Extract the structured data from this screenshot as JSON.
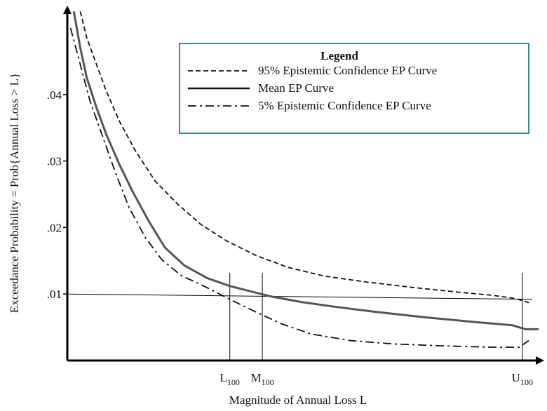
{
  "chart_data": {
    "type": "line",
    "xlabel": "Magnitude of Annual Loss L",
    "ylabel": "Exceedance Probability = Prob{Annual Loss > L}",
    "x_ticks": [
      {
        "base": "L",
        "sub": "100",
        "value": 0.5
      },
      {
        "base": "M",
        "sub": "100",
        "value": 0.6
      },
      {
        "base": "U",
        "sub": "100",
        "value": 1.4
      }
    ],
    "y_ticks": [
      {
        "label": ".01",
        "value": 0.01
      },
      {
        "label": ".02",
        "value": 0.02
      },
      {
        "label": ".03",
        "value": 0.03
      },
      {
        "label": ".04",
        "value": 0.04
      }
    ],
    "xlim": [
      0,
      1.45
    ],
    "ylim": [
      0,
      0.05
    ],
    "reference_line_y": 0.01,
    "legend": {
      "title": "Legend",
      "position": "top-right",
      "entries": [
        {
          "label": "95% Epistemic Confidence EP Curve",
          "style": "dashed"
        },
        {
          "label": "Mean EP Curve",
          "style": "solid"
        },
        {
          "label": "5% Epistemic Confidence EP Curve",
          "style": "dash-dot"
        }
      ]
    },
    "series": [
      {
        "name": "95% Epistemic Confidence EP Curve",
        "style": "dashed",
        "color": "#111111",
        "points": [
          [
            0.04,
            0.0525
          ],
          [
            0.06,
            0.0485
          ],
          [
            0.09,
            0.0445
          ],
          [
            0.12,
            0.0405
          ],
          [
            0.16,
            0.036
          ],
          [
            0.21,
            0.0315
          ],
          [
            0.27,
            0.027
          ],
          [
            0.34,
            0.0235
          ],
          [
            0.41,
            0.0205
          ],
          [
            0.49,
            0.018
          ],
          [
            0.58,
            0.0158
          ],
          [
            0.68,
            0.014
          ],
          [
            0.79,
            0.0127
          ],
          [
            0.92,
            0.0118
          ],
          [
            1.06,
            0.011
          ],
          [
            1.2,
            0.0103
          ],
          [
            1.31,
            0.0098
          ],
          [
            1.38,
            0.0093
          ],
          [
            1.42,
            0.0087
          ]
        ]
      },
      {
        "name": "Mean EP Curve",
        "style": "solid",
        "color": "#555555",
        "points": [
          [
            0.02,
            0.0525
          ],
          [
            0.04,
            0.047
          ],
          [
            0.06,
            0.0425
          ],
          [
            0.09,
            0.038
          ],
          [
            0.12,
            0.034
          ],
          [
            0.16,
            0.0295
          ],
          [
            0.2,
            0.0255
          ],
          [
            0.25,
            0.021
          ],
          [
            0.3,
            0.017
          ],
          [
            0.36,
            0.0143
          ],
          [
            0.43,
            0.0124
          ],
          [
            0.5,
            0.0112
          ],
          [
            0.58,
            0.0102
          ],
          [
            0.63,
            0.0096
          ],
          [
            0.72,
            0.0088
          ],
          [
            0.82,
            0.0081
          ],
          [
            0.95,
            0.0073
          ],
          [
            1.1,
            0.0065
          ],
          [
            1.25,
            0.0058
          ],
          [
            1.37,
            0.0053
          ],
          [
            1.41,
            0.0047
          ],
          [
            1.45,
            0.0047
          ]
        ]
      },
      {
        "name": "5% Epistemic Confidence EP Curve",
        "style": "dash-dot",
        "color": "#111111",
        "points": [
          [
            0.01,
            0.05
          ],
          [
            0.04,
            0.0445
          ],
          [
            0.07,
            0.039
          ],
          [
            0.11,
            0.0335
          ],
          [
            0.15,
            0.028
          ],
          [
            0.19,
            0.023
          ],
          [
            0.24,
            0.0185
          ],
          [
            0.29,
            0.0152
          ],
          [
            0.35,
            0.0128
          ],
          [
            0.42,
            0.0112
          ],
          [
            0.5,
            0.0092
          ],
          [
            0.58,
            0.0073
          ],
          [
            0.66,
            0.0055
          ],
          [
            0.75,
            0.004
          ],
          [
            0.87,
            0.003
          ],
          [
            1.0,
            0.0025
          ],
          [
            1.15,
            0.0022
          ],
          [
            1.3,
            0.002
          ],
          [
            1.39,
            0.002
          ],
          [
            1.42,
            0.003
          ]
        ]
      }
    ]
  }
}
